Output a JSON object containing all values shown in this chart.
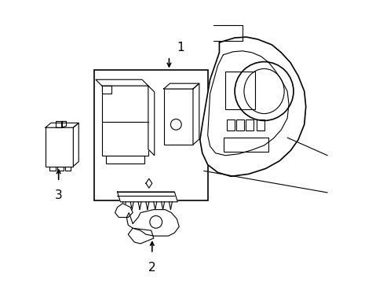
{
  "bg_color": "#ffffff",
  "line_color": "#000000",
  "lw_main": 1.2,
  "lw_thin": 0.8,
  "figsize": [
    4.89,
    3.6
  ],
  "dpi": 100
}
